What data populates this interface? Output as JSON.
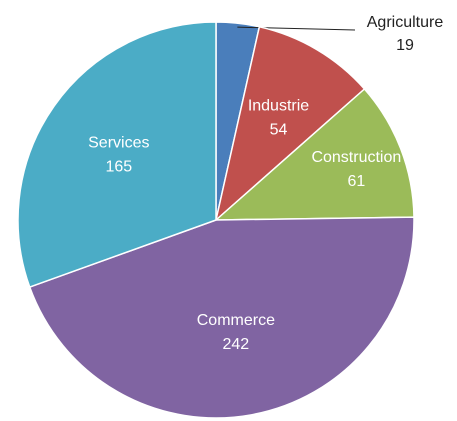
{
  "chart_data": {
    "type": "pie",
    "title": "",
    "slices": [
      {
        "label": "Agriculture",
        "value": 19,
        "color": "#4a7ebb"
      },
      {
        "label": "Industrie",
        "value": 54,
        "color": "#c0504d"
      },
      {
        "label": "Construction",
        "value": 61,
        "color": "#9bbb59"
      },
      {
        "label": "Commerce",
        "value": 242,
        "color": "#8064a2"
      },
      {
        "label": "Services",
        "value": 165,
        "color": "#4bacc6"
      }
    ],
    "start": "12 o'clock",
    "direction": "clockwise",
    "legend": "none",
    "data_labels": "category and value"
  }
}
